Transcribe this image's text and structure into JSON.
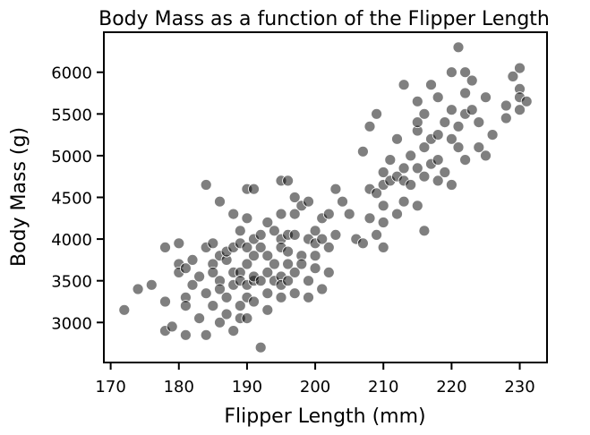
{
  "chart_data": {
    "type": "scatter",
    "title": "Body Mass as a function of the Flipper Length",
    "xlabel": "Flipper Length (mm)",
    "ylabel": "Body Mass (g)",
    "xlim": [
      169,
      234
    ],
    "ylim": [
      2520,
      6480
    ],
    "xticks": [
      170,
      180,
      190,
      200,
      210,
      220,
      230
    ],
    "yticks": [
      3000,
      3500,
      4000,
      4500,
      5000,
      5500,
      6000
    ],
    "xtick_labels": [
      "170",
      "180",
      "190",
      "200",
      "210",
      "220",
      "230"
    ],
    "ytick_labels": [
      "3000",
      "3500",
      "4000",
      "4500",
      "5000",
      "5500",
      "6000"
    ],
    "grid": false,
    "marker_color": "#000000",
    "marker_opacity": 0.5,
    "points": [
      [
        172,
        3150
      ],
      [
        174,
        3400
      ],
      [
        176,
        3450
      ],
      [
        178,
        3250
      ],
      [
        178,
        2900
      ],
      [
        178,
        3900
      ],
      [
        179,
        2950
      ],
      [
        180,
        3700
      ],
      [
        180,
        3600
      ],
      [
        180,
        3950
      ],
      [
        181,
        3300
      ],
      [
        181,
        3650
      ],
      [
        181,
        2850
      ],
      [
        181,
        3200
      ],
      [
        182,
        3750
      ],
      [
        182,
        3450
      ],
      [
        183,
        3550
      ],
      [
        183,
        3050
      ],
      [
        184,
        3900
      ],
      [
        184,
        3350
      ],
      [
        184,
        2850
      ],
      [
        184,
        4650
      ],
      [
        185,
        3700
      ],
      [
        185,
        3200
      ],
      [
        185,
        3600
      ],
      [
        185,
        3950
      ],
      [
        186,
        3000
      ],
      [
        186,
        3800
      ],
      [
        186,
        3500
      ],
      [
        186,
        3400
      ],
      [
        186,
        4450
      ],
      [
        187,
        3300
      ],
      [
        187,
        3750
      ],
      [
        187,
        3100
      ],
      [
        187,
        3850
      ],
      [
        188,
        3900
      ],
      [
        188,
        2900
      ],
      [
        188,
        3600
      ],
      [
        188,
        3450
      ],
      [
        188,
        4300
      ],
      [
        189,
        3050
      ],
      [
        189,
        3600
      ],
      [
        189,
        3200
      ],
      [
        189,
        3950
      ],
      [
        189,
        3500
      ],
      [
        189,
        4100
      ],
      [
        190,
        4250
      ],
      [
        190,
        3900
      ],
      [
        190,
        3450
      ],
      [
        190,
        3050
      ],
      [
        190,
        4600
      ],
      [
        190,
        3700
      ],
      [
        190,
        3300
      ],
      [
        191,
        3800
      ],
      [
        191,
        3250
      ],
      [
        191,
        3500
      ],
      [
        191,
        3550
      ],
      [
        191,
        4000
      ],
      [
        191,
        4600
      ],
      [
        192,
        3900
      ],
      [
        192,
        2700
      ],
      [
        192,
        3500
      ],
      [
        192,
        4050
      ],
      [
        193,
        3600
      ],
      [
        193,
        3800
      ],
      [
        193,
        3150
      ],
      [
        193,
        4200
      ],
      [
        193,
        3350
      ],
      [
        194,
        4100
      ],
      [
        194,
        3700
      ],
      [
        194,
        3500
      ],
      [
        195,
        3300
      ],
      [
        195,
        3550
      ],
      [
        195,
        4000
      ],
      [
        195,
        3900
      ],
      [
        195,
        4300
      ],
      [
        195,
        4700
      ],
      [
        195,
        3450
      ],
      [
        196,
        4050
      ],
      [
        196,
        3500
      ],
      [
        196,
        3850
      ],
      [
        196,
        3700
      ],
      [
        196,
        4700
      ],
      [
        197,
        4300
      ],
      [
        197,
        3600
      ],
      [
        197,
        4050
      ],
      [
        197,
        4500
      ],
      [
        197,
        3350
      ],
      [
        198,
        4400
      ],
      [
        198,
        3800
      ],
      [
        198,
        3700
      ],
      [
        199,
        4000
      ],
      [
        199,
        3500
      ],
      [
        199,
        3300
      ],
      [
        199,
        4450
      ],
      [
        200,
        3950
      ],
      [
        200,
        4100
      ],
      [
        200,
        3650
      ],
      [
        200,
        3800
      ],
      [
        201,
        4000
      ],
      [
        201,
        3400
      ],
      [
        201,
        4250
      ],
      [
        202,
        4300
      ],
      [
        202,
        3600
      ],
      [
        202,
        3900
      ],
      [
        203,
        4050
      ],
      [
        203,
        4600
      ],
      [
        204,
        4450
      ],
      [
        205,
        4300
      ],
      [
        206,
        4000
      ],
      [
        207,
        5050
      ],
      [
        207,
        3950
      ],
      [
        208,
        4600
      ],
      [
        208,
        4250
      ],
      [
        208,
        5350
      ],
      [
        209,
        4550
      ],
      [
        209,
        4050
      ],
      [
        209,
        5500
      ],
      [
        210,
        4200
      ],
      [
        210,
        4400
      ],
      [
        210,
        4800
      ],
      [
        210,
        4650
      ],
      [
        210,
        3900
      ],
      [
        211,
        4700
      ],
      [
        211,
        4950
      ],
      [
        212,
        5200
      ],
      [
        212,
        4300
      ],
      [
        212,
        4750
      ],
      [
        213,
        4700
      ],
      [
        213,
        5850
      ],
      [
        213,
        4450
      ],
      [
        213,
        4850
      ],
      [
        214,
        4650
      ],
      [
        214,
        5000
      ],
      [
        215,
        5300
      ],
      [
        215,
        4850
      ],
      [
        215,
        5650
      ],
      [
        215,
        5400
      ],
      [
        215,
        4400
      ],
      [
        216,
        5100
      ],
      [
        216,
        4750
      ],
      [
        216,
        4100
      ],
      [
        216,
        5500
      ],
      [
        217,
        4900
      ],
      [
        217,
        5200
      ],
      [
        217,
        5850
      ],
      [
        218,
        5700
      ],
      [
        218,
        5250
      ],
      [
        218,
        4700
      ],
      [
        218,
        4950
      ],
      [
        219,
        5400
      ],
      [
        219,
        4800
      ],
      [
        220,
        6000
      ],
      [
        220,
        5200
      ],
      [
        220,
        5550
      ],
      [
        220,
        4650
      ],
      [
        221,
        5100
      ],
      [
        221,
        6300
      ],
      [
        221,
        5350
      ],
      [
        222,
        5750
      ],
      [
        222,
        6000
      ],
      [
        222,
        5500
      ],
      [
        222,
        4950
      ],
      [
        223,
        5550
      ],
      [
        223,
        5900
      ],
      [
        224,
        5400
      ],
      [
        224,
        5100
      ],
      [
        225,
        5700
      ],
      [
        225,
        5000
      ],
      [
        226,
        5250
      ],
      [
        228,
        5600
      ],
      [
        228,
        5450
      ],
      [
        229,
        5950
      ],
      [
        230,
        5800
      ],
      [
        230,
        6050
      ],
      [
        230,
        5550
      ],
      [
        230,
        5700
      ],
      [
        231,
        5650
      ]
    ]
  }
}
